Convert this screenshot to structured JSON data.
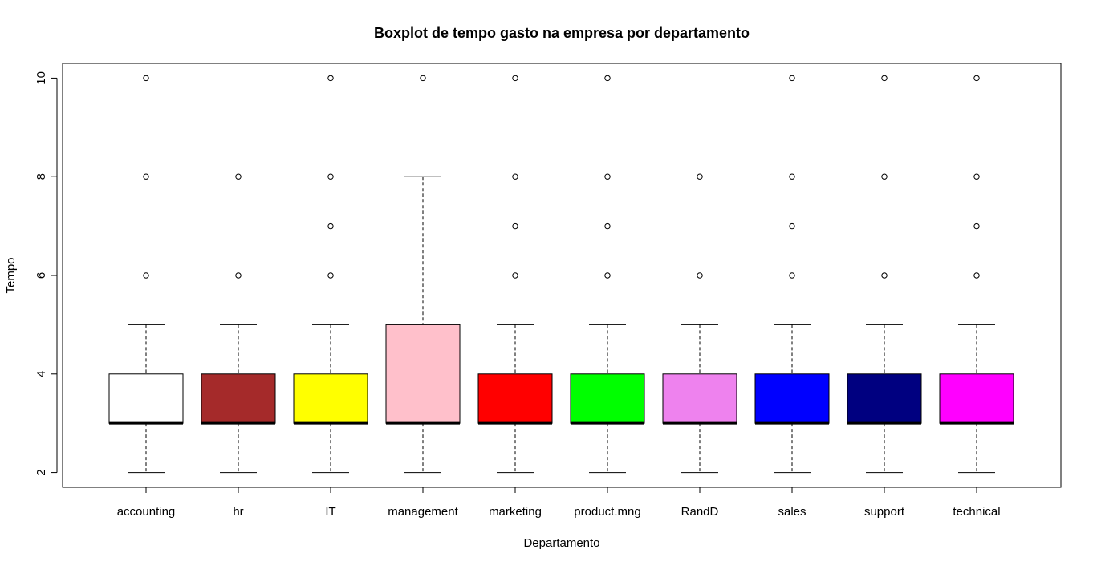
{
  "chart_data": {
    "type": "boxplot",
    "title": "Boxplot de tempo gasto na empresa por departamento",
    "xlabel": "Departamento",
    "ylabel": "Tempo",
    "ylim": [
      1.7,
      10.3
    ],
    "yticks": [
      2,
      4,
      6,
      8,
      10
    ],
    "grid": false,
    "categories": [
      "accounting",
      "hr",
      "IT",
      "management",
      "marketing",
      "product.mng",
      "RandD",
      "sales",
      "support",
      "technical"
    ],
    "colors": [
      "#FFFFFF",
      "#A52A2A",
      "#FFFF00",
      "#FFC0CB",
      "#FF0000",
      "#00FF00",
      "#EE82EE",
      "#0000FF",
      "#000080",
      "#FF00FF"
    ],
    "boxes": [
      {
        "name": "accounting",
        "whisker_low": 2,
        "q1": 3,
        "median": 3,
        "q3": 4,
        "whisker_high": 5,
        "outliers": [
          6,
          8,
          10
        ]
      },
      {
        "name": "hr",
        "whisker_low": 2,
        "q1": 3,
        "median": 3,
        "q3": 4,
        "whisker_high": 5,
        "outliers": [
          6,
          8
        ]
      },
      {
        "name": "IT",
        "whisker_low": 2,
        "q1": 3,
        "median": 3,
        "q3": 4,
        "whisker_high": 5,
        "outliers": [
          6,
          7,
          8,
          10
        ]
      },
      {
        "name": "management",
        "whisker_low": 2,
        "q1": 3,
        "median": 3,
        "q3": 5,
        "whisker_high": 8,
        "outliers": [
          10
        ]
      },
      {
        "name": "marketing",
        "whisker_low": 2,
        "q1": 3,
        "median": 3,
        "q3": 4,
        "whisker_high": 5,
        "outliers": [
          6,
          7,
          8,
          10
        ]
      },
      {
        "name": "product.mng",
        "whisker_low": 2,
        "q1": 3,
        "median": 3,
        "q3": 4,
        "whisker_high": 5,
        "outliers": [
          6,
          7,
          8,
          10
        ]
      },
      {
        "name": "RandD",
        "whisker_low": 2,
        "q1": 3,
        "median": 3,
        "q3": 4,
        "whisker_high": 5,
        "outliers": [
          6,
          8
        ]
      },
      {
        "name": "sales",
        "whisker_low": 2,
        "q1": 3,
        "median": 3,
        "q3": 4,
        "whisker_high": 5,
        "outliers": [
          6,
          7,
          8,
          10
        ]
      },
      {
        "name": "support",
        "whisker_low": 2,
        "q1": 3,
        "median": 3,
        "q3": 4,
        "whisker_high": 5,
        "outliers": [
          6,
          8,
          10
        ]
      },
      {
        "name": "technical",
        "whisker_low": 2,
        "q1": 3,
        "median": 3,
        "q3": 4,
        "whisker_high": 5,
        "outliers": [
          6,
          7,
          8,
          10
        ]
      }
    ]
  }
}
